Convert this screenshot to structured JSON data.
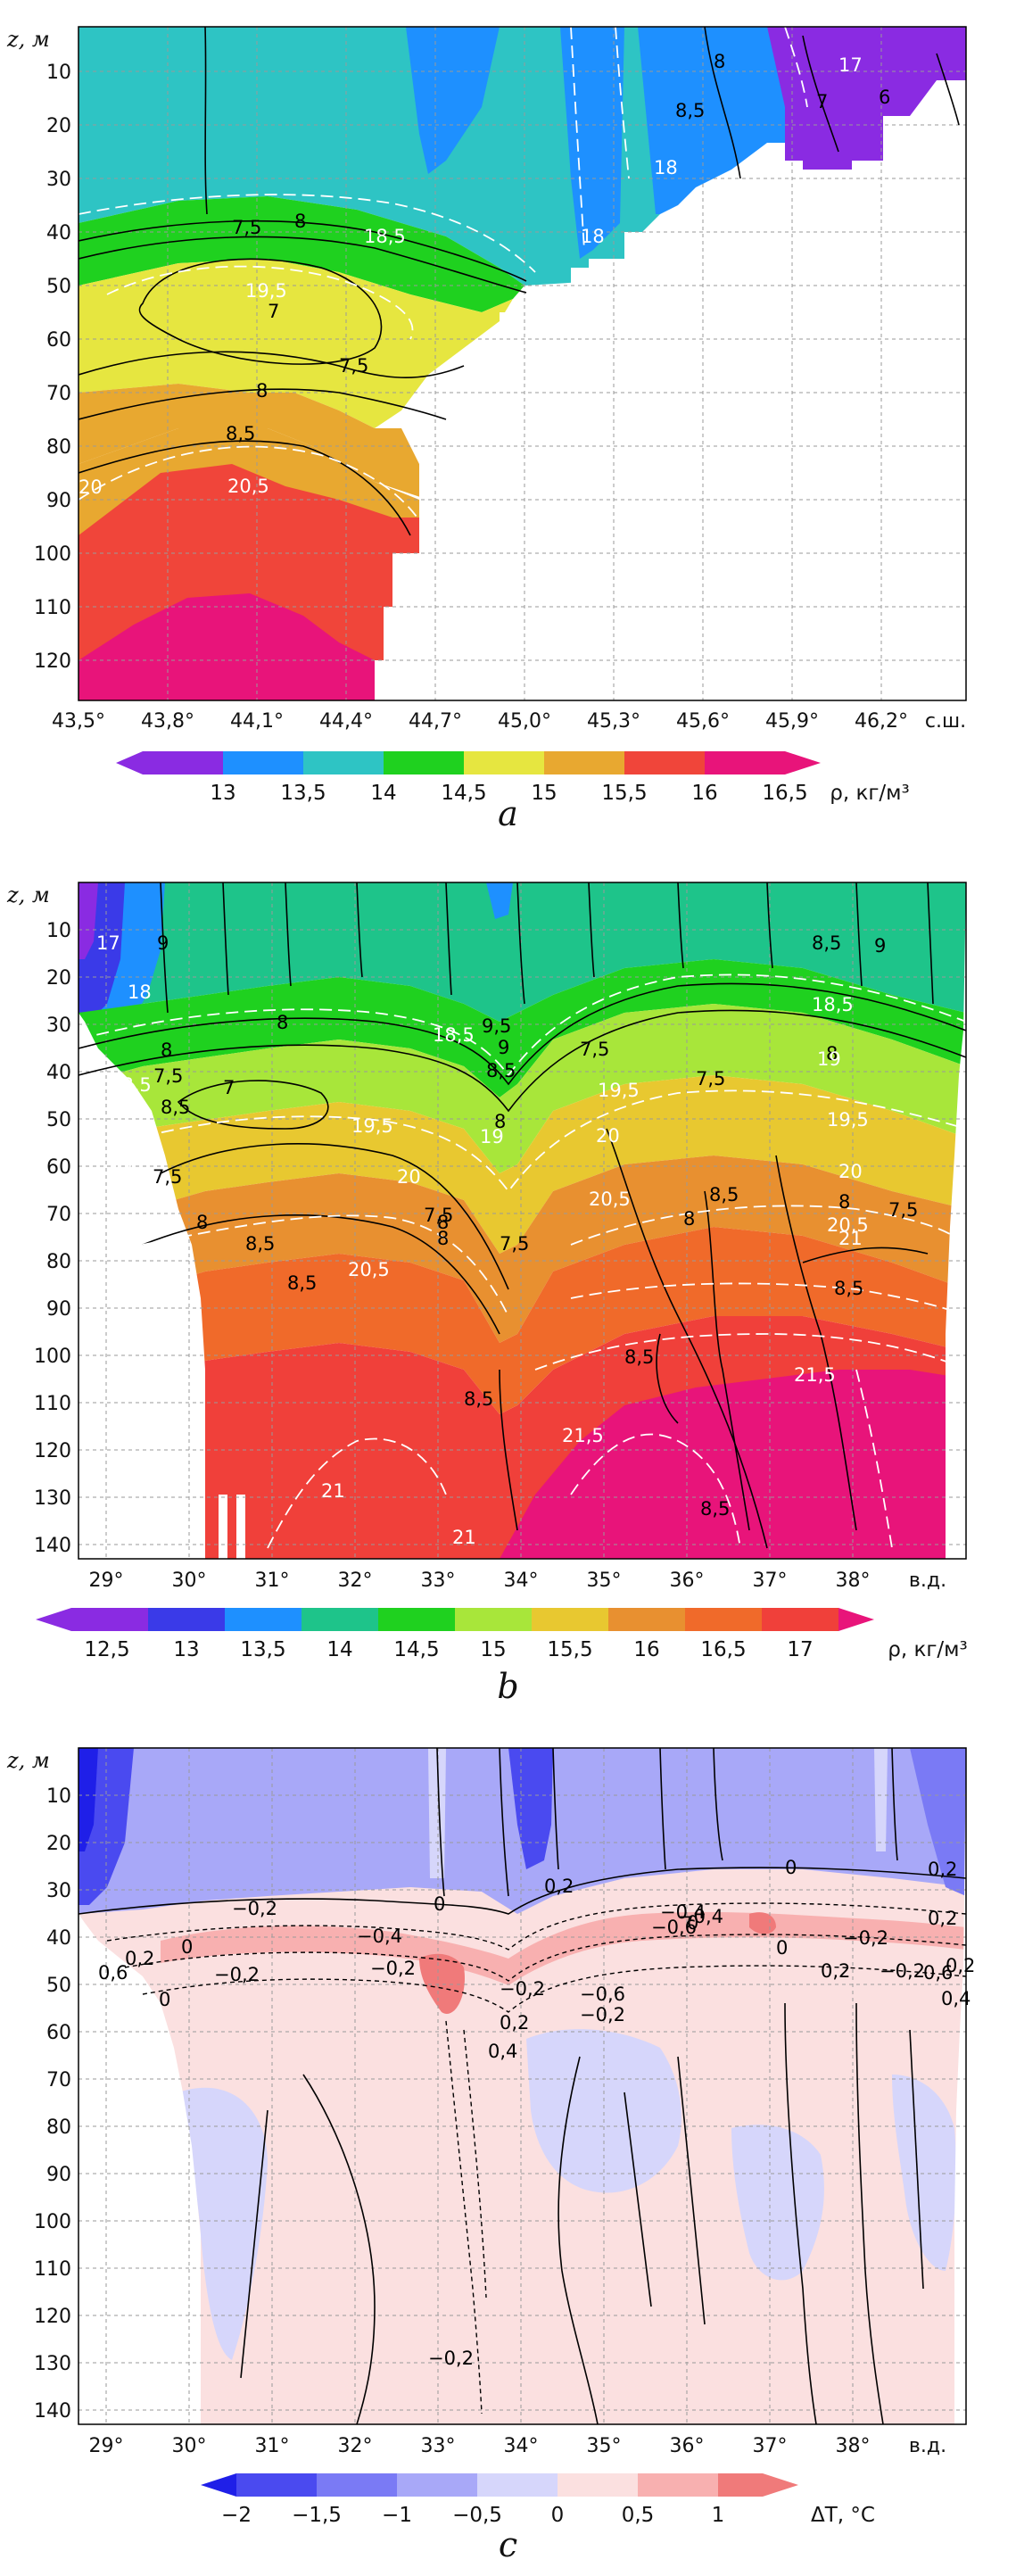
{
  "chart_data": [
    {
      "type": "heatmap",
      "panel_label": "a",
      "ylabel": "z, м",
      "y_ticks": [
        10,
        20,
        30,
        40,
        50,
        60,
        70,
        80,
        90,
        100,
        110,
        120
      ],
      "ylim": [
        0,
        130
      ],
      "x_ticks": [
        "43,5°",
        "43,8°",
        "44,1°",
        "44,4°",
        "44,7°",
        "45,0°",
        "45,3°",
        "45,6°",
        "45,9°",
        "46,2°"
      ],
      "x_unit": "с.ш.",
      "xlim": [
        43.5,
        46.4
      ],
      "colorbar": {
        "ticks": [
          "13",
          "13,5",
          "14",
          "14,5",
          "15",
          "15,5",
          "16",
          "16,5"
        ],
        "label": "ρ, кг/м³",
        "colors": [
          "#8a2be2",
          "#1e90ff",
          "#2ec4c4",
          "#1fd11f",
          "#e6e640",
          "#e8a830",
          "#f0453a",
          "#e8147a"
        ]
      },
      "contour_labels_black": [
        "7,5",
        "8",
        "7",
        "7,5",
        "8",
        "8,5",
        "8",
        "8,5",
        "7",
        "6"
      ],
      "contour_labels_white": [
        "18,5",
        "19,5",
        "20,5",
        "20",
        "18",
        "18",
        "17"
      ]
    },
    {
      "type": "heatmap",
      "panel_label": "b",
      "ylabel": "z, м",
      "y_ticks": [
        10,
        20,
        30,
        40,
        50,
        60,
        70,
        80,
        90,
        100,
        110,
        120,
        130,
        140
      ],
      "ylim": [
        0,
        144
      ],
      "x_ticks": [
        "29°",
        "30°",
        "31°",
        "32°",
        "33°",
        "34°",
        "35°",
        "36°",
        "37°",
        "38°"
      ],
      "x_unit": "в.д.",
      "xlim": [
        28.6,
        39.0
      ],
      "colorbar": {
        "ticks": [
          "12,5",
          "13",
          "13,5",
          "14",
          "14,5",
          "15",
          "15,5",
          "16",
          "16,5",
          "17"
        ],
        "label": "ρ, кг/м³",
        "colors": [
          "#8a2be2",
          "#3a3ae8",
          "#1e90ff",
          "#1ec48a",
          "#1fd11f",
          "#a8e63a",
          "#e8c830",
          "#e89030",
          "#f06a2a",
          "#f0403a",
          "#e8147a"
        ]
      },
      "contour_labels_black": [
        "9",
        "8",
        "7,5",
        "7",
        "8,5",
        "7,5",
        "8",
        "8,5",
        "7,5",
        "8",
        "9,5",
        "9",
        "8,5",
        "8",
        "7,5",
        "8",
        "7,5",
        "8",
        "7,5",
        "8,5",
        "8",
        "8,5",
        "8,5",
        "8,5",
        "7,5",
        "9",
        "8,5",
        "8",
        "8",
        "8,5",
        "8,5"
      ],
      "contour_labels_white": [
        "17",
        "18",
        "18,5",
        "19,5",
        "19,5",
        "20",
        "20,5",
        "18,5",
        "19",
        "19,5",
        "20",
        "20,5",
        "21",
        "21,5",
        "21,5",
        "21",
        "21",
        "18,5",
        "19",
        "19,5",
        "20",
        "20,5"
      ]
    },
    {
      "type": "heatmap",
      "panel_label": "c",
      "ylabel": "z, м",
      "y_ticks": [
        10,
        20,
        30,
        40,
        50,
        60,
        70,
        80,
        90,
        100,
        110,
        120,
        130,
        140
      ],
      "ylim": [
        0,
        144
      ],
      "x_ticks": [
        "29°",
        "30°",
        "31°",
        "32°",
        "33°",
        "34°",
        "35°",
        "36°",
        "37°",
        "38°"
      ],
      "x_unit": "в.д.",
      "xlim": [
        28.6,
        39.0
      ],
      "colorbar": {
        "ticks": [
          "−2",
          "−1,5",
          "−1",
          "−0,5",
          "0",
          "0,5",
          "1"
        ],
        "label": "ΔT, °C",
        "colors": [
          "#1f1fe8",
          "#4a4af0",
          "#7a7af5",
          "#a8a8f8",
          "#d6d6fb",
          "#fbe0e0",
          "#f8b0b0",
          "#f07a7a"
        ]
      },
      "contour_labels_black": [
        "−0,2",
        "0",
        "0,2",
        "0",
        "0,2",
        "−0,4",
        "−0,2",
        "0",
        "−0,2",
        "0",
        "0,2",
        "−0,4",
        "−0,6",
        "−0,2",
        "−0,6",
        "−0,2",
        "0",
        "0,2",
        "0",
        "0,2",
        "−0,2",
        "−0,4",
        "−0,2",
        "0,6",
        "0,2",
        "0,4",
        "−0,2",
        "0,6",
        "0,2",
        "0,4"
      ]
    }
  ]
}
